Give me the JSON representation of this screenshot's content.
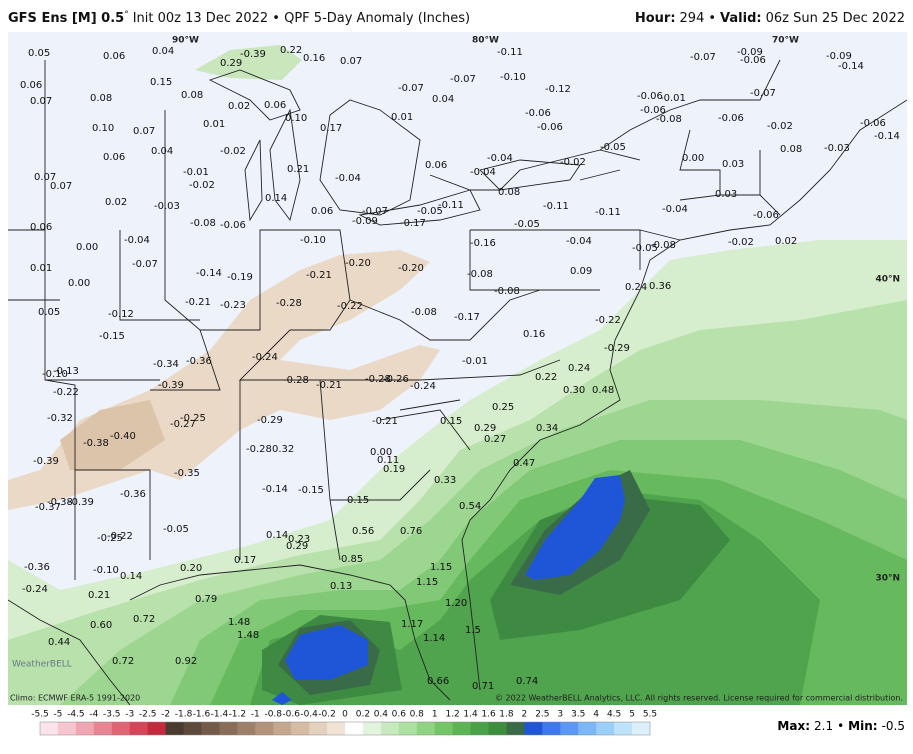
{
  "header": {
    "model": "GFS Ens [M] 0.5",
    "degree": "°",
    "info": "Init 00z 13 Dec 2022 • QPF 5-Day Anomaly (Inches)",
    "hour_label": "Hour:",
    "hour_value": "294",
    "separator": "•",
    "valid_label": "Valid:",
    "valid_value": "06z Sun 25 Dec 2022"
  },
  "map": {
    "grid_labels": [
      "90°W",
      "80°W",
      "70°W",
      "40°N",
      "30°N"
    ],
    "labels": [
      "0.05",
      "0.06",
      "0.04",
      "-0.39",
      "0.22",
      "0.16",
      "0.07",
      "-0.11",
      "-0.07",
      "-0.09",
      "-0.06",
      "-0.09",
      "-0.14",
      "0.15",
      "0.08",
      "0.29",
      "0.06",
      "0.07",
      "0.08",
      "-0.10",
      "-0.07",
      "-0.07",
      "-0.12",
      "0.04",
      "-0.06",
      "-0.01",
      "-0.07",
      "-0.06",
      "-0.08",
      "0.02",
      "0.06",
      "0.10",
      "0.17",
      "0.01",
      "-0.06",
      "-0.06",
      "-0.06",
      "-0.02",
      "-0.06",
      "-0.14",
      "0.10",
      "0.07",
      "0.01",
      "-0.05",
      "-0.03",
      "0.08",
      "0.04",
      "-0.02",
      "0.06",
      "0.00",
      "0.03",
      "-0.04",
      "-0.02",
      "0.06",
      "0.21",
      "-0.01",
      "-0.04",
      "-0.04",
      "0.07",
      "0.07",
      "-0.02",
      "0.03",
      "0.08",
      "0.02",
      "-0.03",
      "0.14",
      "0.06",
      "-0.07",
      "-0.05",
      "-0.11",
      "-0.11",
      "-0.11",
      "-0.04",
      "-0.06",
      "0.06",
      "-0.08",
      "-0.06",
      "-0.09",
      "-0.17",
      "-0.05",
      "-0.04",
      "0.00",
      "-0.10",
      "-0.16",
      "-0.04",
      "-0.08",
      "-0.05",
      "-0.02",
      "0.02",
      "-0.07",
      "0.01",
      "-0.20",
      "-0.20",
      "-0.14",
      "-0.19",
      "-0.21",
      "-0.08",
      "0.09",
      "0.00",
      "-0.08",
      "0.24",
      "0.36",
      "-0.21",
      "-0.23",
      "-0.28",
      "-0.22",
      "0.05",
      "-0.12",
      "-0.08",
      "-0.17",
      "-0.22",
      "-0.15",
      "0.16",
      "-0.29",
      "-0.36",
      "-0.34",
      "-0.24",
      "-0.01",
      "-0.13",
      "-0.10",
      "0.24",
      "0.22",
      "-0.28",
      "-0.21",
      "-0.28",
      "-0.26",
      "-0.24",
      "-0.39",
      "-0.22",
      "0.30",
      "0.48",
      "0.25",
      "-0.32",
      "-0.25",
      "-0.27",
      "-0.29",
      "-0.21",
      "0.15",
      "0.29",
      "0.34",
      "-0.40",
      "-0.38",
      "0.27",
      "-0.28",
      "0.32",
      "0.00",
      "0.11",
      "0.47",
      "-0.39",
      "0.19",
      "-0.35",
      "0.33",
      "-0.14",
      "-0.15",
      "-0.36",
      "-0.38",
      "-0.39",
      "-0.37",
      "0.15",
      "0.54",
      "-0.05",
      "0.56",
      "0.76",
      "-0.22",
      "-0.25",
      "0.14",
      "0.23",
      "0.29",
      "0.17",
      "0.85",
      "-0.36",
      "-0.10",
      "0.14",
      "0.20",
      "1.15",
      "1.15",
      "-0.24",
      "0.13",
      "0.21",
      "0.79",
      "1.20",
      "0.72",
      "0.60",
      "1.48",
      "1.17",
      "1.5",
      "1.48",
      "1.14",
      "0.44",
      "0.72",
      "0.92",
      "0.66",
      "0.71",
      "0.74"
    ],
    "logo": "WeatherBELL"
  },
  "footer": {
    "climo": "Climo: ECMWF ERA-5 1991-2020",
    "copyright": "© 2022 WeatherBELL Analytics, LLC. All rights reserved. License required for commercial distribution.",
    "max_label": "Max:",
    "max_value": "2.1",
    "separator": "•",
    "min_label": "Min:",
    "min_value": "-0.5"
  },
  "colorbar": {
    "ticks": [
      "-5.5",
      "-5",
      "-4.5",
      "-4",
      "-3.5",
      "-3",
      "-2.5",
      "-2",
      "-1.8",
      "-1.6",
      "-1.4",
      "-1.2",
      "-1",
      "-0.8",
      "-0.6",
      "-0.4",
      "-0.2",
      "0",
      "0.2",
      "0.4",
      "0.6",
      "0.8",
      "1",
      "1.2",
      "1.4",
      "1.6",
      "1.8",
      "2",
      "2.5",
      "3",
      "3.5",
      "4",
      "4.5",
      "5",
      "5.5"
    ],
    "colors": [
      "#fbe3ea",
      "#f6c5cf",
      "#f0a5b2",
      "#e88593",
      "#e06474",
      "#d54458",
      "#c42a3d",
      "#4a3a30",
      "#5e4a3c",
      "#735b4a",
      "#886d59",
      "#9d8069",
      "#b1937b",
      "#c3a78f",
      "#d4bca5",
      "#e3d0bd",
      "#f0e3d5",
      "#ffffff",
      "#e3f4de",
      "#c8e9bf",
      "#ace0a0",
      "#90d383",
      "#74c468",
      "#5cb455",
      "#4aa248",
      "#3c8e3e",
      "#3a6b48",
      "#1f56d8",
      "#3d78ee",
      "#5c98f3",
      "#7db6f6",
      "#9ccff8",
      "#bde2fa",
      "#dcf0fc"
    ]
  }
}
